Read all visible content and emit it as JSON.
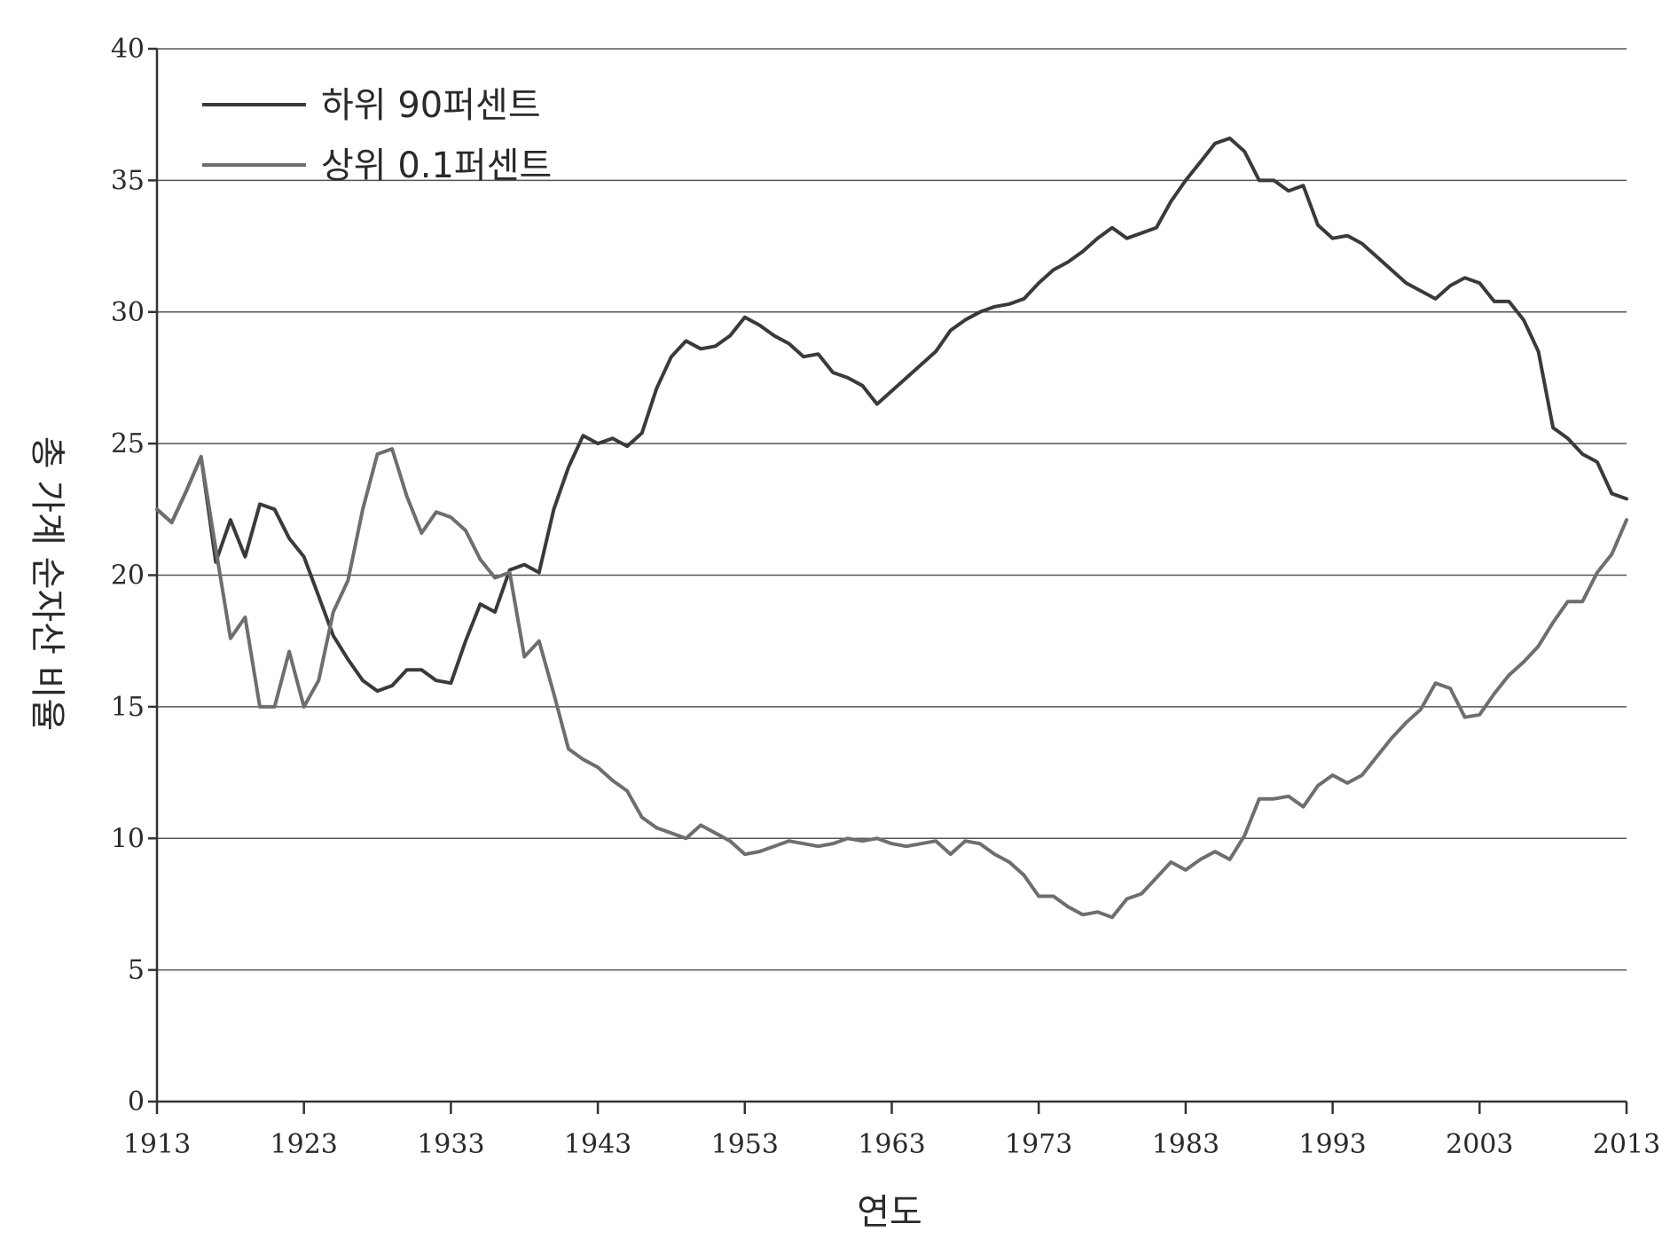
{
  "chart_data": {
    "type": "line",
    "title": "",
    "xlabel": "연도",
    "ylabel": "총 가계 순자산 비율",
    "xlim": [
      1913,
      2013
    ],
    "ylim": [
      0,
      40
    ],
    "x_ticks": [
      "1913",
      "1923",
      "1933",
      "1943",
      "1953",
      "1963",
      "1973",
      "1983",
      "1993",
      "2003",
      "2013"
    ],
    "y_ticks": [
      "0",
      "5",
      "10",
      "15",
      "20",
      "25",
      "30",
      "35",
      "40"
    ],
    "grid": "horizontal",
    "legend": "top-left",
    "series": [
      {
        "name": "하위 90퍼센트",
        "color": "#3a3a3a",
        "x": [
          1913,
          1914,
          1915,
          1916,
          1917,
          1918,
          1919,
          1920,
          1921,
          1922,
          1923,
          1924,
          1925,
          1926,
          1927,
          1928,
          1929,
          1930,
          1931,
          1932,
          1933,
          1934,
          1935,
          1936,
          1937,
          1938,
          1939,
          1940,
          1941,
          1942,
          1943,
          1944,
          1945,
          1946,
          1947,
          1948,
          1949,
          1950,
          1951,
          1952,
          1953,
          1954,
          1955,
          1956,
          1957,
          1958,
          1959,
          1960,
          1961,
          1962,
          1963,
          1964,
          1965,
          1966,
          1967,
          1968,
          1969,
          1970,
          1971,
          1972,
          1973,
          1974,
          1975,
          1976,
          1977,
          1978,
          1979,
          1980,
          1981,
          1982,
          1983,
          1984,
          1985,
          1986,
          1987,
          1988,
          1989,
          1990,
          1991,
          1992,
          1993,
          1994,
          1995,
          1996,
          1997,
          1998,
          1999,
          2000,
          2001,
          2002,
          2003,
          2004,
          2005,
          2006,
          2007,
          2008,
          2009,
          2010,
          2011,
          2012,
          2013
        ],
        "values": [
          22.5,
          22.0,
          23.2,
          24.5,
          20.5,
          22.1,
          20.7,
          22.7,
          22.5,
          21.4,
          20.7,
          19.2,
          17.7,
          16.8,
          16.0,
          15.6,
          15.8,
          16.4,
          16.4,
          16.0,
          15.9,
          17.5,
          18.9,
          18.6,
          20.2,
          20.4,
          20.1,
          22.5,
          24.1,
          25.3,
          25.0,
          25.2,
          24.9,
          25.4,
          27.1,
          28.3,
          28.9,
          28.6,
          28.7,
          29.1,
          29.8,
          29.5,
          29.1,
          28.8,
          28.3,
          28.4,
          27.7,
          27.5,
          27.2,
          26.5,
          27.0,
          27.5,
          28.0,
          28.5,
          29.3,
          29.7,
          30.0,
          30.2,
          30.3,
          30.5,
          31.1,
          31.6,
          31.9,
          32.3,
          32.8,
          33.2,
          32.8,
          33.0,
          33.2,
          34.2,
          35.0,
          35.7,
          36.4,
          36.6,
          36.1,
          35.0,
          35.0,
          34.6,
          34.8,
          33.3,
          32.8,
          32.9,
          32.6,
          32.1,
          31.6,
          31.1,
          30.8,
          30.5,
          31.0,
          31.3,
          31.1,
          30.4,
          30.4,
          29.7,
          28.5,
          25.6,
          25.2,
          24.6,
          24.3,
          23.1,
          22.9
        ]
      },
      {
        "name": "상위 0.1퍼센트",
        "color": "#6e6e6e",
        "x": [
          1913,
          1914,
          1915,
          1916,
          1917,
          1918,
          1919,
          1920,
          1921,
          1922,
          1923,
          1924,
          1925,
          1926,
          1927,
          1928,
          1929,
          1930,
          1931,
          1932,
          1933,
          1934,
          1935,
          1936,
          1937,
          1938,
          1939,
          1940,
          1941,
          1942,
          1943,
          1944,
          1945,
          1946,
          1947,
          1948,
          1949,
          1950,
          1951,
          1952,
          1953,
          1954,
          1955,
          1956,
          1957,
          1958,
          1959,
          1960,
          1961,
          1962,
          1963,
          1964,
          1965,
          1966,
          1967,
          1968,
          1969,
          1970,
          1971,
          1972,
          1973,
          1974,
          1975,
          1976,
          1977,
          1978,
          1979,
          1980,
          1981,
          1982,
          1983,
          1984,
          1985,
          1986,
          1987,
          1988,
          1989,
          1990,
          1991,
          1992,
          1993,
          1994,
          1995,
          1996,
          1997,
          1998,
          1999,
          2000,
          2001,
          2002,
          2003,
          2004,
          2005,
          2006,
          2007,
          2008,
          2009,
          2010,
          2011,
          2012,
          2013
        ],
        "values": [
          22.5,
          22.0,
          23.2,
          24.5,
          21.0,
          17.6,
          18.4,
          15.0,
          15.0,
          17.1,
          15.0,
          16.0,
          18.6,
          19.8,
          22.5,
          24.6,
          24.8,
          23.0,
          21.6,
          22.4,
          22.2,
          21.7,
          20.6,
          19.9,
          20.1,
          16.9,
          17.5,
          15.5,
          13.4,
          13.0,
          12.7,
          12.2,
          11.8,
          10.8,
          10.4,
          10.2,
          10.0,
          10.5,
          10.2,
          9.9,
          9.4,
          9.5,
          9.7,
          9.9,
          9.8,
          9.7,
          9.8,
          10.0,
          9.9,
          10.0,
          9.8,
          9.7,
          9.8,
          9.9,
          9.4,
          9.9,
          9.8,
          9.4,
          9.1,
          8.6,
          7.8,
          7.8,
          7.4,
          7.1,
          7.2,
          7.0,
          7.7,
          7.9,
          8.5,
          9.1,
          8.8,
          9.2,
          9.5,
          9.2,
          10.1,
          11.5,
          11.5,
          11.6,
          11.2,
          12.0,
          12.4,
          12.1,
          12.4,
          13.1,
          13.8,
          14.4,
          14.9,
          15.9,
          15.7,
          14.6,
          14.7,
          15.5,
          16.2,
          16.7,
          17.3,
          18.2,
          19.0,
          19.0,
          20.1,
          20.8,
          22.1
        ]
      }
    ]
  }
}
